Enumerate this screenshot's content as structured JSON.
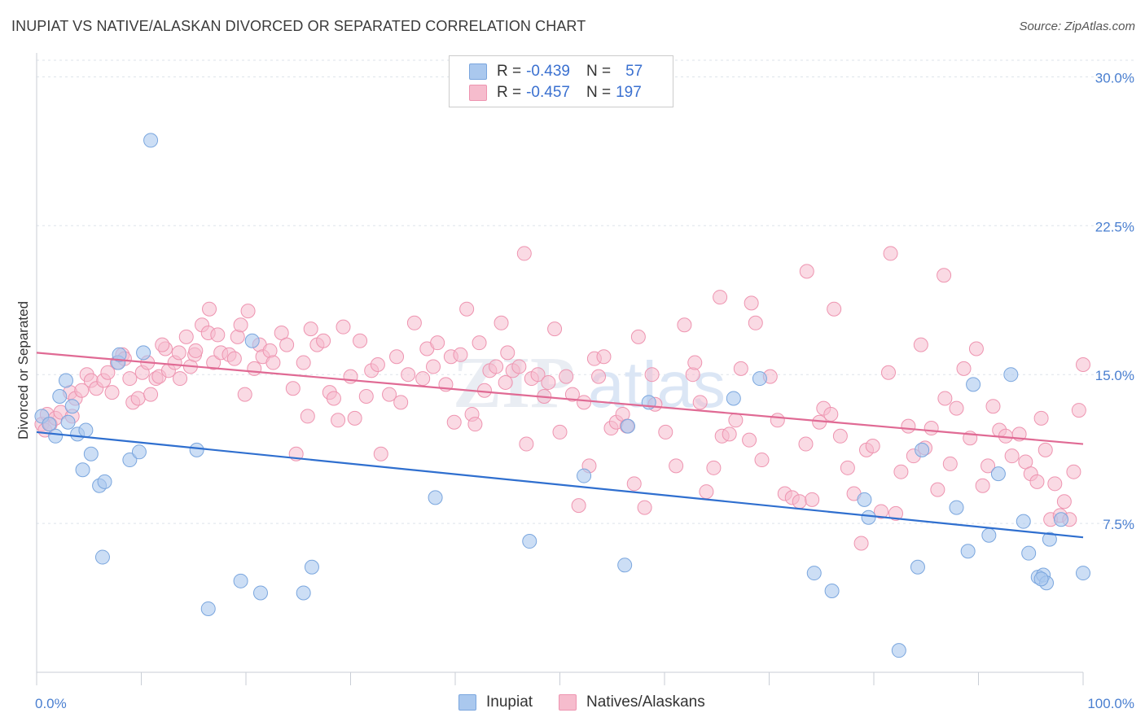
{
  "title": "INUPIAT VS NATIVE/ALASKAN DIVORCED OR SEPARATED CORRELATION CHART",
  "source": "Source: ZipAtlas.com",
  "watermark": "ZIPatlas",
  "legend": {
    "row1": {
      "r_label": "R =",
      "r_value": "-0.439",
      "n_label": "N =",
      "n_value": "57"
    },
    "row2": {
      "r_label": "R =",
      "r_value": "-0.457",
      "n_label": "N =",
      "n_value": "197"
    }
  },
  "bottom_legend": {
    "inupiat": "Inupiat",
    "natives": "Natives/Alaskans"
  },
  "colors": {
    "blue_fill": "#aac8ee",
    "blue_stroke": "#7aa6de",
    "blue_line": "#2f6fcf",
    "pink_fill": "#f6bccd",
    "pink_stroke": "#ee94b0",
    "pink_line": "#e06a94",
    "axis_text": "#4a7fd0"
  },
  "chart_data": {
    "type": "scatter",
    "title": "INUPIAT VS NATIVE/ALASKAN DIVORCED OR SEPARATED CORRELATION CHART",
    "xlabel": "",
    "ylabel": "Divorced or Separated",
    "xlim": [
      0,
      100
    ],
    "ylim": [
      0,
      31
    ],
    "x_tick_labels": [
      "0.0%",
      "100.0%"
    ],
    "y_ticks": [
      7.5,
      15.0,
      22.5,
      30.0
    ],
    "y_tick_labels": [
      "7.5%",
      "15.0%",
      "22.5%",
      "30.0%"
    ],
    "grid": true,
    "legend_position": "top-center",
    "series": [
      {
        "name": "Inupiat",
        "trend": {
          "x": [
            0,
            100
          ],
          "y": [
            12.1,
            6.8
          ]
        },
        "points": [
          [
            0.5,
            12.9
          ],
          [
            1.2,
            12.5
          ],
          [
            1.8,
            11.9
          ],
          [
            2.2,
            13.9
          ],
          [
            2.8,
            14.7
          ],
          [
            3.4,
            13.4
          ],
          [
            3.9,
            12.0
          ],
          [
            4.4,
            10.2
          ],
          [
            4.7,
            12.2
          ],
          [
            5.2,
            11.0
          ],
          [
            6.0,
            9.4
          ],
          [
            6.5,
            9.6
          ],
          [
            6.3,
            5.8
          ],
          [
            7.8,
            15.6
          ],
          [
            7.9,
            16.0
          ],
          [
            8.9,
            10.7
          ],
          [
            9.8,
            11.1
          ],
          [
            10.2,
            16.1
          ],
          [
            10.9,
            26.8
          ],
          [
            15.3,
            11.2
          ],
          [
            16.4,
            3.2
          ],
          [
            19.5,
            4.6
          ],
          [
            20.6,
            16.7
          ],
          [
            21.4,
            4.0
          ],
          [
            25.5,
            4.0
          ],
          [
            26.3,
            5.3
          ],
          [
            38.1,
            8.8
          ],
          [
            47.1,
            6.6
          ],
          [
            52.3,
            9.9
          ],
          [
            56.2,
            5.4
          ],
          [
            56.5,
            12.4
          ],
          [
            58.5,
            13.6
          ],
          [
            66.6,
            13.8
          ],
          [
            69.1,
            14.8
          ],
          [
            74.3,
            5.0
          ],
          [
            76.0,
            4.1
          ],
          [
            79.1,
            8.7
          ],
          [
            79.5,
            7.8
          ],
          [
            82.4,
            1.1
          ],
          [
            84.2,
            5.3
          ],
          [
            84.6,
            11.2
          ],
          [
            87.9,
            8.3
          ],
          [
            89.0,
            6.1
          ],
          [
            89.5,
            14.5
          ],
          [
            91.0,
            6.9
          ],
          [
            91.9,
            10.0
          ],
          [
            93.1,
            15.0
          ],
          [
            94.3,
            7.6
          ],
          [
            94.8,
            6.0
          ],
          [
            95.7,
            4.8
          ],
          [
            96.2,
            4.9
          ],
          [
            96.5,
            4.5
          ],
          [
            96.8,
            6.7
          ],
          [
            97.9,
            7.7
          ],
          [
            100.0,
            5.0
          ],
          [
            96.0,
            4.7
          ],
          [
            3.0,
            12.6
          ]
        ]
      },
      {
        "name": "Natives/Alaskans",
        "trend": {
          "x": [
            0,
            100
          ],
          "y": [
            16.1,
            11.5
          ]
        },
        "points": [
          [
            0.5,
            12.5
          ],
          [
            0.8,
            12.2
          ],
          [
            1.0,
            13.0
          ],
          [
            1.3,
            12.5
          ],
          [
            1.8,
            12.8
          ],
          [
            2.3,
            13.1
          ],
          [
            3.2,
            14.1
          ],
          [
            3.4,
            12.9
          ],
          [
            3.7,
            13.8
          ],
          [
            4.3,
            14.2
          ],
          [
            4.8,
            15.0
          ],
          [
            5.2,
            14.7
          ],
          [
            5.7,
            14.3
          ],
          [
            6.4,
            14.7
          ],
          [
            6.8,
            15.1
          ],
          [
            7.2,
            14.1
          ],
          [
            7.7,
            15.6
          ],
          [
            8.2,
            16.0
          ],
          [
            8.4,
            15.8
          ],
          [
            8.9,
            14.8
          ],
          [
            9.2,
            13.6
          ],
          [
            9.7,
            13.8
          ],
          [
            10.1,
            15.1
          ],
          [
            10.6,
            15.6
          ],
          [
            10.9,
            14.0
          ],
          [
            11.4,
            14.8
          ],
          [
            11.7,
            14.9
          ],
          [
            12.3,
            16.3
          ],
          [
            12.6,
            15.2
          ],
          [
            13.2,
            15.6
          ],
          [
            13.6,
            16.1
          ],
          [
            14.3,
            16.9
          ],
          [
            14.7,
            15.4
          ],
          [
            15.1,
            16.0
          ],
          [
            15.8,
            17.5
          ],
          [
            16.4,
            17.1
          ],
          [
            16.5,
            18.3
          ],
          [
            16.9,
            15.6
          ],
          [
            17.3,
            17.0
          ],
          [
            17.6,
            16.1
          ],
          [
            18.4,
            16.0
          ],
          [
            18.9,
            15.8
          ],
          [
            19.2,
            16.9
          ],
          [
            19.5,
            17.5
          ],
          [
            19.9,
            14.0
          ],
          [
            20.8,
            15.3
          ],
          [
            21.3,
            16.5
          ],
          [
            21.6,
            15.9
          ],
          [
            22.3,
            16.2
          ],
          [
            22.6,
            15.6
          ],
          [
            23.4,
            17.1
          ],
          [
            23.9,
            16.5
          ],
          [
            24.5,
            14.3
          ],
          [
            25.5,
            15.6
          ],
          [
            25.9,
            12.9
          ],
          [
            26.2,
            17.3
          ],
          [
            26.8,
            16.5
          ],
          [
            27.4,
            16.7
          ],
          [
            28.0,
            14.1
          ],
          [
            28.4,
            13.8
          ],
          [
            28.8,
            12.7
          ],
          [
            29.3,
            17.4
          ],
          [
            30.0,
            14.9
          ],
          [
            30.4,
            12.8
          ],
          [
            30.9,
            16.7
          ],
          [
            31.5,
            13.9
          ],
          [
            32.0,
            15.2
          ],
          [
            32.6,
            15.5
          ],
          [
            32.9,
            11.0
          ],
          [
            33.7,
            14.0
          ],
          [
            34.4,
            15.9
          ],
          [
            34.8,
            13.6
          ],
          [
            35.5,
            15.0
          ],
          [
            36.1,
            17.6
          ],
          [
            36.9,
            14.8
          ],
          [
            37.3,
            16.3
          ],
          [
            37.9,
            15.4
          ],
          [
            38.3,
            16.6
          ],
          [
            39.1,
            14.5
          ],
          [
            39.6,
            15.9
          ],
          [
            39.9,
            12.6
          ],
          [
            40.5,
            16.0
          ],
          [
            41.1,
            18.3
          ],
          [
            41.6,
            13.0
          ],
          [
            41.9,
            12.5
          ],
          [
            42.3,
            16.6
          ],
          [
            42.8,
            14.2
          ],
          [
            43.3,
            15.2
          ],
          [
            43.9,
            15.4
          ],
          [
            44.4,
            17.6
          ],
          [
            44.8,
            14.6
          ],
          [
            45.0,
            16.1
          ],
          [
            45.5,
            15.2
          ],
          [
            46.1,
            15.4
          ],
          [
            46.8,
            11.5
          ],
          [
            47.3,
            14.8
          ],
          [
            47.9,
            15.0
          ],
          [
            48.5,
            13.9
          ],
          [
            48.9,
            14.6
          ],
          [
            49.5,
            17.3
          ],
          [
            50.0,
            12.1
          ],
          [
            50.6,
            14.9
          ],
          [
            51.2,
            14.0
          ],
          [
            51.8,
            8.4
          ],
          [
            52.3,
            13.6
          ],
          [
            52.8,
            10.4
          ],
          [
            53.3,
            15.8
          ],
          [
            53.7,
            14.9
          ],
          [
            54.2,
            15.9
          ],
          [
            54.9,
            12.3
          ],
          [
            55.4,
            12.6
          ],
          [
            56.0,
            13.0
          ],
          [
            56.4,
            12.4
          ],
          [
            57.1,
            9.5
          ],
          [
            58.1,
            8.3
          ],
          [
            58.8,
            15.0
          ],
          [
            59.1,
            13.5
          ],
          [
            60.1,
            12.1
          ],
          [
            61.1,
            10.4
          ],
          [
            61.9,
            17.5
          ],
          [
            62.7,
            15.0
          ],
          [
            63.4,
            13.6
          ],
          [
            64.0,
            9.1
          ],
          [
            64.7,
            10.3
          ],
          [
            65.5,
            11.9
          ],
          [
            66.2,
            12.0
          ],
          [
            66.8,
            12.7
          ],
          [
            67.3,
            15.3
          ],
          [
            68.1,
            11.7
          ],
          [
            68.7,
            17.6
          ],
          [
            69.3,
            10.7
          ],
          [
            70.1,
            14.9
          ],
          [
            70.8,
            12.7
          ],
          [
            71.5,
            9.0
          ],
          [
            72.2,
            8.8
          ],
          [
            72.9,
            8.6
          ],
          [
            73.5,
            11.5
          ],
          [
            74.1,
            8.7
          ],
          [
            74.8,
            12.6
          ],
          [
            75.2,
            13.3
          ],
          [
            75.9,
            13.0
          ],
          [
            76.2,
            18.3
          ],
          [
            76.8,
            11.9
          ],
          [
            77.5,
            10.3
          ],
          [
            78.1,
            9.0
          ],
          [
            78.8,
            6.5
          ],
          [
            79.3,
            11.2
          ],
          [
            79.9,
            11.4
          ],
          [
            80.7,
            8.1
          ],
          [
            81.4,
            15.1
          ],
          [
            82.1,
            8.0
          ],
          [
            82.6,
            10.1
          ],
          [
            83.3,
            12.4
          ],
          [
            83.8,
            10.9
          ],
          [
            84.5,
            16.5
          ],
          [
            84.9,
            11.3
          ],
          [
            85.5,
            12.3
          ],
          [
            86.1,
            9.2
          ],
          [
            86.8,
            13.8
          ],
          [
            87.3,
            10.5
          ],
          [
            87.9,
            13.3
          ],
          [
            88.6,
            15.3
          ],
          [
            89.2,
            11.8
          ],
          [
            89.8,
            16.3
          ],
          [
            90.4,
            9.4
          ],
          [
            90.9,
            10.4
          ],
          [
            91.4,
            13.4
          ],
          [
            92.0,
            12.2
          ],
          [
            92.6,
            11.9
          ],
          [
            93.2,
            10.9
          ],
          [
            93.9,
            12.0
          ],
          [
            94.5,
            10.6
          ],
          [
            95.0,
            10.0
          ],
          [
            95.6,
            9.6
          ],
          [
            96.0,
            12.8
          ],
          [
            96.4,
            11.2
          ],
          [
            96.9,
            7.7
          ],
          [
            97.3,
            9.5
          ],
          [
            97.8,
            7.9
          ],
          [
            98.2,
            8.6
          ],
          [
            98.7,
            7.7
          ],
          [
            99.1,
            10.1
          ],
          [
            99.6,
            13.2
          ],
          [
            100.0,
            15.5
          ],
          [
            46.6,
            21.1
          ],
          [
            73.6,
            20.2
          ],
          [
            81.6,
            21.1
          ],
          [
            86.7,
            20.0
          ],
          [
            65.3,
            18.9
          ],
          [
            68.3,
            18.6
          ],
          [
            57.5,
            16.9
          ],
          [
            62.9,
            15.6
          ],
          [
            24.8,
            11.0
          ],
          [
            13.7,
            14.8
          ],
          [
            12.0,
            16.5
          ],
          [
            15.2,
            16.2
          ],
          [
            20.2,
            18.2
          ]
        ]
      }
    ]
  }
}
